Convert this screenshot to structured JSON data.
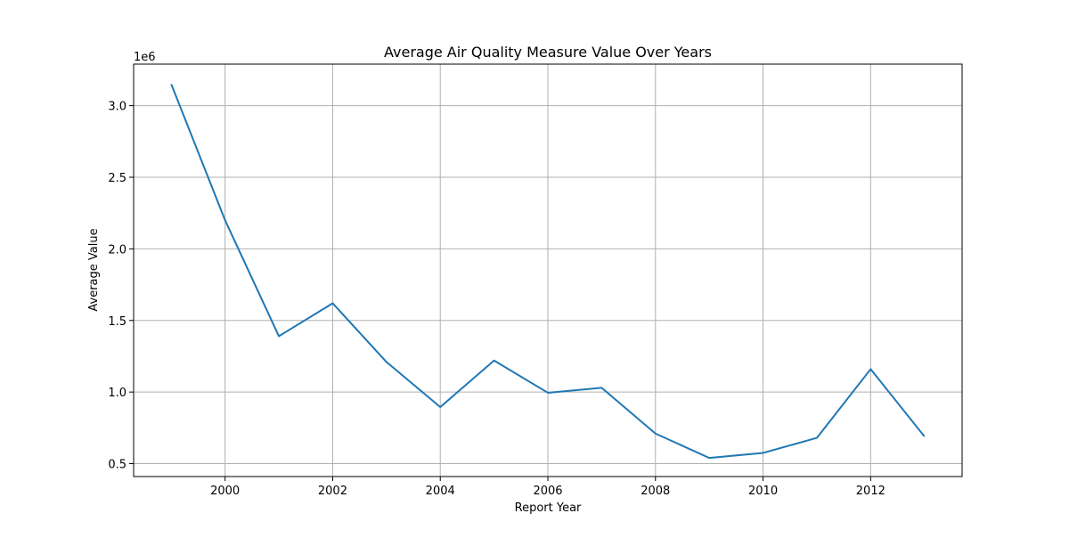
{
  "chart_data": {
    "type": "line",
    "title": "Average Air Quality Measure Value Over Years",
    "xlabel": "Report Year",
    "ylabel": "Average Value",
    "y_offset_label": "1e6",
    "x": [
      1999,
      2000,
      2001,
      2002,
      2003,
      2004,
      2005,
      2006,
      2007,
      2008,
      2009,
      2010,
      2011,
      2012,
      2013
    ],
    "series": [
      {
        "values": [
          3150000,
          2200000,
          1390000,
          1620000,
          1210000,
          895000,
          1220000,
          995000,
          1030000,
          710000,
          540000,
          575000,
          680000,
          1160000,
          690000
        ],
        "color": "#1f77b4"
      }
    ],
    "xlim": [
      1998.3,
      2013.7
    ],
    "ylim": [
      410000,
      3290000
    ],
    "x_ticks": [
      {
        "value": 2000,
        "label": "2000"
      },
      {
        "value": 2002,
        "label": "2002"
      },
      {
        "value": 2004,
        "label": "2004"
      },
      {
        "value": 2006,
        "label": "2006"
      },
      {
        "value": 2008,
        "label": "2008"
      },
      {
        "value": 2010,
        "label": "2010"
      },
      {
        "value": 2012,
        "label": "2012"
      }
    ],
    "y_ticks": [
      {
        "value": 500000,
        "label": "0.5"
      },
      {
        "value": 1000000,
        "label": "1.0"
      },
      {
        "value": 1500000,
        "label": "1.5"
      },
      {
        "value": 2000000,
        "label": "2.0"
      },
      {
        "value": 2500000,
        "label": "2.5"
      },
      {
        "value": 3000000,
        "label": "3.0"
      }
    ],
    "grid": true,
    "grid_color": "#b0b0b0"
  }
}
